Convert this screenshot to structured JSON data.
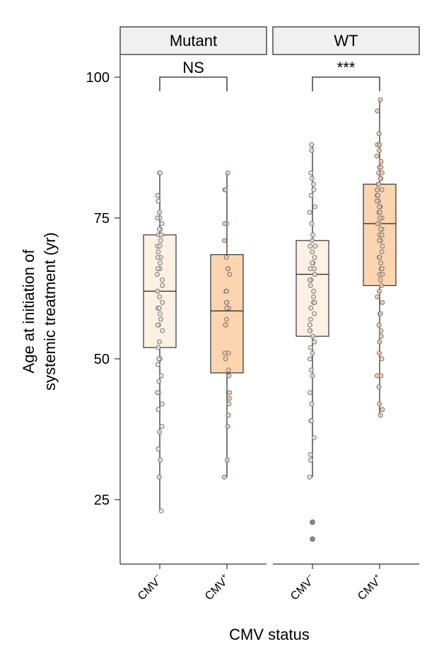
{
  "chart_data": {
    "type": "box",
    "xlabel": "CMV status",
    "ylabel_lines": [
      "Age at initiation of",
      "systemic treatment (yr)"
    ],
    "ylim": [
      14,
      101
    ],
    "yticks": [
      25,
      50,
      75,
      100
    ],
    "colors": {
      "cmv_neg_fill": "#fdf1e4",
      "cmv_pos_fill": "#fbd4b0",
      "cmv_neg_point": "#e9e1d9",
      "cmv_pos_point": "#f3c7a0",
      "point_stroke": "#7a7a7a",
      "line": "#333333",
      "strip_fill": "#f0f0f0"
    },
    "panels": [
      {
        "label": "Mutant",
        "significance": "NS",
        "groups": [
          {
            "category": "CMV",
            "sup": "−",
            "stats": {
              "min": 23,
              "q1": 52,
              "median": 62,
              "q3": 72,
              "max": 83
            },
            "points": [
              83,
              83,
              79,
              78,
              76,
              75,
              75,
              74,
              73,
              73,
              72,
              72,
              71,
              70,
              70,
              69,
              68,
              68,
              67,
              66,
              66,
              65,
              64,
              63,
              62,
              61,
              60,
              59,
              59,
              58,
              57,
              56,
              56,
              55,
              53,
              52,
              50,
              50,
              49,
              47,
              46,
              44,
              44,
              42,
              41,
              38,
              37,
              34,
              32,
              29,
              23
            ]
          },
          {
            "category": "CMV",
            "sup": "+",
            "stats": {
              "min": 29,
              "q1": 47.5,
              "median": 58.5,
              "q3": 68.5,
              "max": 83
            },
            "points": [
              83,
              80,
              80,
              74,
              74,
              71,
              68,
              66,
              66,
              65,
              62,
              62,
              60,
              60,
              59,
              59,
              57,
              56,
              56,
              51,
              51,
              50,
              48,
              47,
              44,
              43,
              42,
              40,
              38,
              32,
              29
            ]
          }
        ]
      },
      {
        "label": "WT",
        "significance": "***",
        "groups": [
          {
            "category": "CMV",
            "sup": "−",
            "stats": {
              "min": 29,
              "q1": 54,
              "median": 65,
              "q3": 71,
              "max": 88
            },
            "outliers": [
              21,
              21,
              18
            ],
            "points": [
              88,
              87,
              83,
              82,
              81,
              80,
              79,
              77,
              76,
              74,
              72,
              71,
              70,
              70,
              69,
              68,
              67,
              67,
              66,
              66,
              65,
              64,
              64,
              63,
              62,
              61,
              60,
              60,
              59,
              58,
              57,
              56,
              55,
              55,
              54,
              53,
              53,
              52,
              51,
              50,
              48,
              47,
              44,
              42,
              39,
              39,
              36,
              33,
              32,
              29
            ]
          },
          {
            "category": "CMV",
            "sup": "+",
            "stats": {
              "min": 40,
              "q1": 63,
              "median": 74,
              "q3": 81,
              "max": 96
            },
            "points": [
              96,
              94,
              90,
              88,
              88,
              87,
              86,
              85,
              84,
              84,
              83,
              83,
              82,
              82,
              81,
              81,
              80,
              80,
              80,
              79,
              79,
              78,
              78,
              77,
              77,
              76,
              76,
              75,
              75,
              74,
              74,
              73,
              73,
              72,
              72,
              71,
              71,
              70,
              69,
              68,
              68,
              67,
              66,
              66,
              65,
              65,
              64,
              63,
              62,
              61,
              60,
              58,
              58,
              56,
              55,
              54,
              53,
              51,
              50,
              47,
              47,
              45,
              42,
              41,
              40
            ]
          }
        ]
      }
    ]
  }
}
